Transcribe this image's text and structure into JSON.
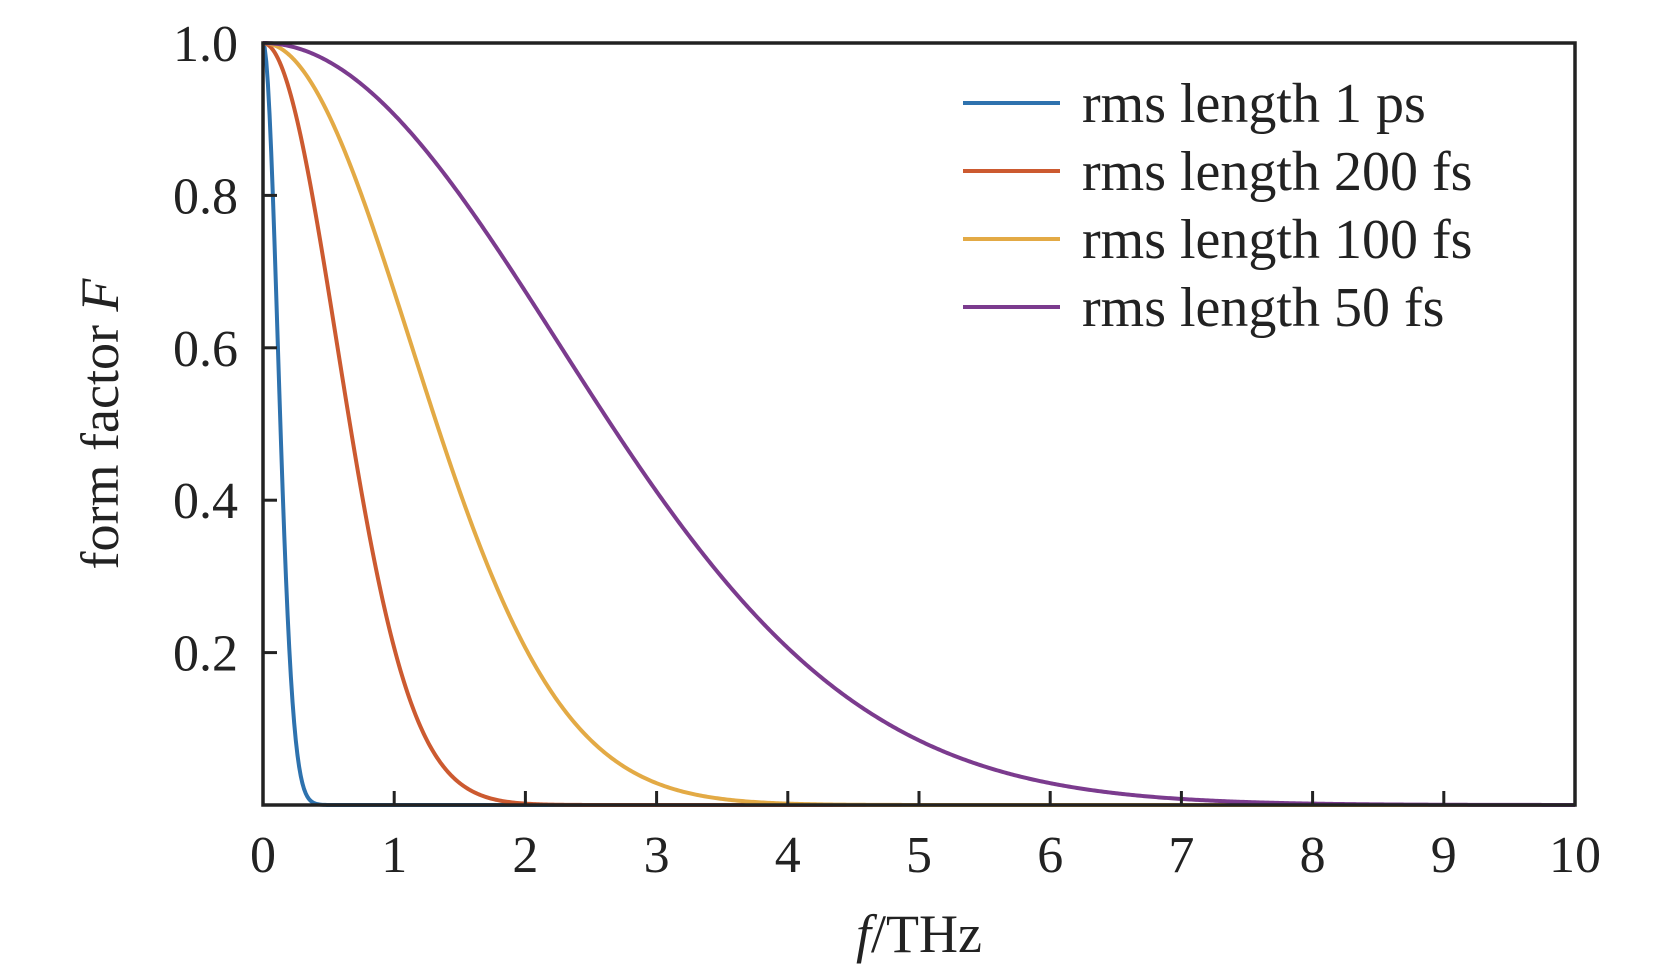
{
  "chart_data": {
    "type": "line",
    "title": "",
    "xlabel": {
      "symbol": "f",
      "unit": "/THz"
    },
    "ylabel": {
      "text": "form factor ",
      "symbol": "F"
    },
    "xlim": [
      0,
      10
    ],
    "ylim": [
      0,
      1.0
    ],
    "x_ticks": [
      0,
      1,
      2,
      3,
      4,
      5,
      6,
      7,
      8,
      9,
      10
    ],
    "x_tick_labels": [
      "0",
      "1",
      "2",
      "3",
      "4",
      "5",
      "6",
      "7",
      "8",
      "9",
      "10"
    ],
    "y_ticks": [
      0.2,
      0.4,
      0.6,
      0.8,
      1.0
    ],
    "y_tick_labels": [
      "0.2",
      "0.4",
      "0.6",
      "0.8",
      "1.0"
    ],
    "grid": false,
    "legend_position": "top-right",
    "series": [
      {
        "name": "rms length 1 ps",
        "color": "#2e72ae",
        "rms_ps": 1.0
      },
      {
        "name": "rms length 200 fs",
        "color": "#cc5a30",
        "rms_ps": 0.2
      },
      {
        "name": "rms length 100 fs",
        "color": "#e3aa45",
        "rms_ps": 0.1
      },
      {
        "name": "rms length 50 fs",
        "color": "#7b3b8e",
        "rms_ps": 0.05
      }
    ]
  }
}
